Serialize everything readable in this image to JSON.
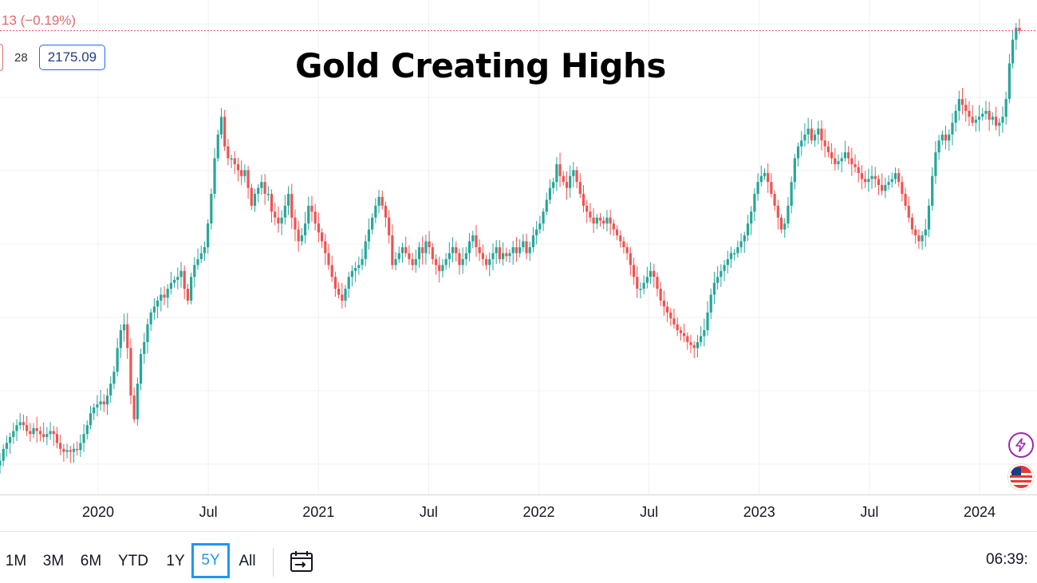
{
  "header": {
    "change_text": "13 (−0.19%)",
    "ohlc_partial": "28",
    "price_badge": "2175.09"
  },
  "chart_data": {
    "type": "candlestick",
    "title": "Gold Creating Highs",
    "x_tick_labels": [
      "2020",
      "Jul",
      "2021",
      "Jul",
      "2022",
      "Jul",
      "2023",
      "Jul",
      "2024"
    ],
    "x_tick_dates": [
      "2020-01",
      "2020-07",
      "2021-01",
      "2021-07",
      "2022-01",
      "2022-07",
      "2023-01",
      "2023-07",
      "2024-01"
    ],
    "x_range": [
      "2019-06",
      "2024-04"
    ],
    "y_range": [
      1420,
      2200
    ],
    "current_price_line": 2175.09,
    "grid": true,
    "up_color": "#26a69a",
    "down_color": "#ef5350",
    "price_line_color": "#ef5350",
    "weekly_closes": [
      1450,
      1470,
      1480,
      1490,
      1500,
      1510,
      1515,
      1510,
      1500,
      1495,
      1505,
      1500,
      1495,
      1490,
      1495,
      1500,
      1495,
      1480,
      1470,
      1465,
      1468,
      1465,
      1470,
      1468,
      1480,
      1495,
      1510,
      1530,
      1540,
      1545,
      1550,
      1545,
      1560,
      1580,
      1600,
      1640,
      1670,
      1680,
      1640,
      1560,
      1520,
      1580,
      1630,
      1650,
      1680,
      1700,
      1710,
      1720,
      1730,
      1725,
      1740,
      1750,
      1755,
      1760,
      1770,
      1740,
      1720,
      1760,
      1780,
      1790,
      1800,
      1810,
      1850,
      1900,
      1960,
      2000,
      2030,
      1980,
      1960,
      1960,
      1950,
      1940,
      1930,
      1940,
      1910,
      1880,
      1900,
      1910,
      1920,
      1900,
      1900,
      1870,
      1860,
      1850,
      1860,
      1880,
      1900,
      1860,
      1840,
      1820,
      1830,
      1850,
      1880,
      1870,
      1850,
      1835,
      1820,
      1800,
      1780,
      1760,
      1740,
      1730,
      1720,
      1740,
      1760,
      1770,
      1775,
      1780,
      1790,
      1820,
      1840,
      1860,
      1880,
      1895,
      1880,
      1860,
      1830,
      1780,
      1790,
      1800,
      1810,
      1800,
      1790,
      1780,
      1790,
      1810,
      1800,
      1820,
      1810,
      1790,
      1780,
      1770,
      1780,
      1790,
      1800,
      1810,
      1800,
      1780,
      1790,
      1800,
      1820,
      1830,
      1810,
      1800,
      1790,
      1780,
      1790,
      1800,
      1810,
      1790,
      1800,
      1795,
      1800,
      1810,
      1800,
      1810,
      1820,
      1800,
      1810,
      1830,
      1840,
      1850,
      1870,
      1890,
      1910,
      1920,
      1950,
      1930,
      1920,
      1910,
      1930,
      1940,
      1920,
      1900,
      1880,
      1870,
      1860,
      1850,
      1860,
      1855,
      1850,
      1860,
      1850,
      1840,
      1830,
      1820,
      1810,
      1800,
      1780,
      1760,
      1740,
      1740,
      1750,
      1760,
      1770,
      1760,
      1740,
      1720,
      1710,
      1700,
      1690,
      1680,
      1670,
      1665,
      1660,
      1650,
      1645,
      1640,
      1650,
      1660,
      1670,
      1700,
      1730,
      1750,
      1760,
      1770,
      1780,
      1790,
      1800,
      1800,
      1810,
      1820,
      1830,
      1850,
      1870,
      1900,
      1920,
      1930,
      1935,
      1920,
      1900,
      1880,
      1860,
      1840,
      1850,
      1880,
      1920,
      1960,
      1980,
      1990,
      2000,
      2010,
      1990,
      2000,
      2010,
      1990,
      1980,
      1970,
      1960,
      1950,
      1955,
      1960,
      1970,
      1960,
      1950,
      1945,
      1935,
      1925,
      1920,
      1925,
      1930,
      1925,
      1915,
      1905,
      1915,
      1920,
      1925,
      1935,
      1920,
      1900,
      1880,
      1860,
      1840,
      1830,
      1820,
      1830,
      1840,
      1880,
      1930,
      1970,
      1990,
      2000,
      1990,
      2000,
      2020,
      2040,
      2060,
      2050,
      2040,
      2030,
      2020,
      2025,
      2030,
      2035,
      2040,
      2025,
      2030,
      2015,
      2020,
      2030,
      2060,
      2120,
      2160,
      2180,
      2175
    ]
  },
  "side_icons": {
    "bolt": "lightning-bolt-icon",
    "flag": "us-flag-icon"
  },
  "toolbar": {
    "ranges": [
      "1M",
      "3M",
      "6M",
      "YTD",
      "1Y",
      "5Y",
      "All"
    ],
    "active_range": "5Y",
    "calendar_icon": "calendar-range-icon",
    "time_text": "06:39:"
  }
}
